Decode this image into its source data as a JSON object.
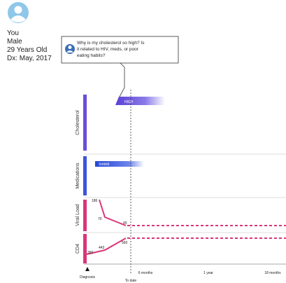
{
  "profile": {
    "name": "You",
    "gender": "Male",
    "age": "29 Years Old",
    "diagnosis": "Dx: May, 2017"
  },
  "question": [
    "Why is my cholesterol so high? Is",
    "it related to HIV, meds, or poor",
    "eating habits?"
  ],
  "rows": [
    "Cholesterol",
    "Medications",
    "Viral Load",
    "CD4"
  ],
  "cholesterol_label": "HIGH",
  "medication_label": "Stribild",
  "viral_load_labels": [
    "186",
    "70",
    "45"
  ],
  "cd4_labels": [
    "350",
    "443",
    "560"
  ],
  "axis_labels": {
    "diagnosis": "Diagnosis",
    "to_date": "To date",
    "six_months": "6 months",
    "one_year": "1 year",
    "eighteen_months": "18 months"
  }
}
